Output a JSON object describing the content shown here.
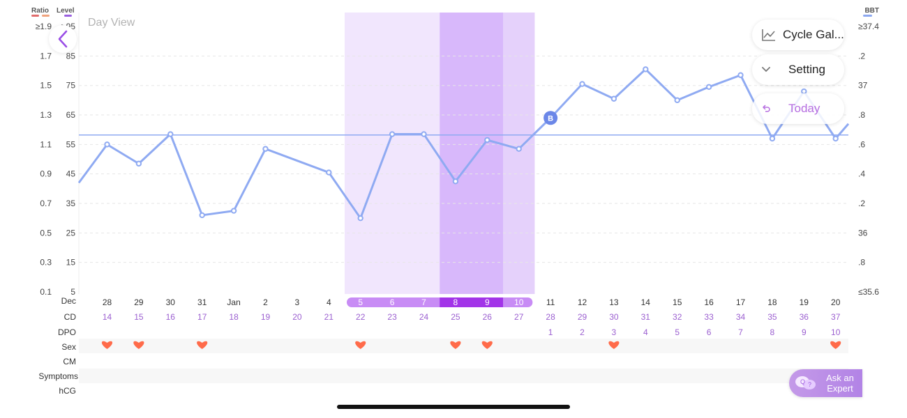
{
  "view_title": "Day View",
  "legend": {
    "ratio": {
      "label": "Ratio",
      "colors": [
        "#e06b6b",
        "#f0a37d"
      ]
    },
    "level": {
      "label": "Level",
      "color": "#9a5fe0"
    },
    "bbt": {
      "label": "BBT",
      "color": "#8ca8f0"
    }
  },
  "buttons": {
    "back_icon": "chevron-left-icon",
    "cycle_gallery": {
      "label": "Cycle Gal...",
      "icon": "line-chart-icon"
    },
    "setting": {
      "label": "Setting",
      "icon": "chevron-down-icon"
    },
    "today": {
      "label": "Today",
      "icon": "return-arrow-icon"
    },
    "ask_expert": {
      "label_line1": "Ask an",
      "label_line2": "Expert",
      "icon": "chat-bubbles-icon"
    }
  },
  "row_labels": {
    "month": "Dec",
    "cd": "CD",
    "dpo": "DPO",
    "sex": "Sex",
    "cm": "CM",
    "symptoms": "Symptoms",
    "hcg": "hCG"
  },
  "colors": {
    "line": "#8faaf2",
    "fertile_light": "#f1e6fd",
    "fertile_mid": "#e5d1fb",
    "fertile_peak": "#d8b8fb",
    "pill_light": "#c88cf5",
    "pill_dark": "#a234e8",
    "heart": "#ff6b4a",
    "marker_b": "#6b87e8",
    "row_shade": "#f7f7f7",
    "grid": "#e6e6e6"
  },
  "chart_data": {
    "type": "line",
    "left_axis_ratio_ticks": [
      "≥1.9",
      "1.7",
      "1.5",
      "1.3",
      "1.1",
      "0.9",
      "0.7",
      "0.5",
      "0.3",
      "0.1"
    ],
    "left_axis_level_ticks": [
      ">95",
      "85",
      "75",
      "65",
      "55",
      "45",
      "35",
      "25",
      "15",
      "5"
    ],
    "right_axis_bbt_ticks": [
      "≥37.4",
      ".2",
      "37",
      ".8",
      ".6",
      ".4",
      ".2",
      "36",
      ".8",
      "≤35.6"
    ],
    "days": [
      "28",
      "29",
      "30",
      "31",
      "Jan",
      "2",
      "3",
      "4",
      "5",
      "6",
      "7",
      "8",
      "9",
      "10",
      "11",
      "12",
      "13",
      "14",
      "15",
      "16",
      "17",
      "18",
      "19",
      "20"
    ],
    "cd": [
      "14",
      "15",
      "16",
      "17",
      "18",
      "19",
      "20",
      "21",
      "22",
      "23",
      "24",
      "25",
      "26",
      "27",
      "28",
      "29",
      "30",
      "31",
      "32",
      "33",
      "34",
      "35",
      "36",
      "37"
    ],
    "dpo": [
      "",
      "",
      "",
      "",
      "",
      "",
      "",
      "",
      "",
      "",
      "",
      "",
      "",
      "",
      "1",
      "2",
      "3",
      "4",
      "5",
      "6",
      "7",
      "8",
      "9",
      "10"
    ],
    "bbt_series": {
      "start_level": 42,
      "values": [
        55,
        48.5,
        58.5,
        31,
        32.5,
        53.5,
        null,
        45.5,
        30,
        58.5,
        58.5,
        42.5,
        56.5,
        53.5,
        64,
        75.5,
        70.5,
        80.5,
        70,
        74.5,
        78.5,
        57,
        73,
        57
      ],
      "end_level": 62,
      "markers": [
        "",
        "",
        "",
        "",
        "",
        "",
        "",
        "",
        "",
        "",
        "",
        "",
        "",
        "",
        "B",
        "",
        "",
        "",
        "",
        "",
        "",
        "",
        "",
        ""
      ]
    },
    "coverline_level": 58.2,
    "fertile_window_days": [
      "5",
      "6",
      "7",
      "8",
      "9",
      "10"
    ],
    "peak_days": [
      "8",
      "9"
    ],
    "sex_days": [
      "28",
      "29",
      "31",
      "5",
      "8",
      "9",
      "13",
      "20"
    ]
  }
}
